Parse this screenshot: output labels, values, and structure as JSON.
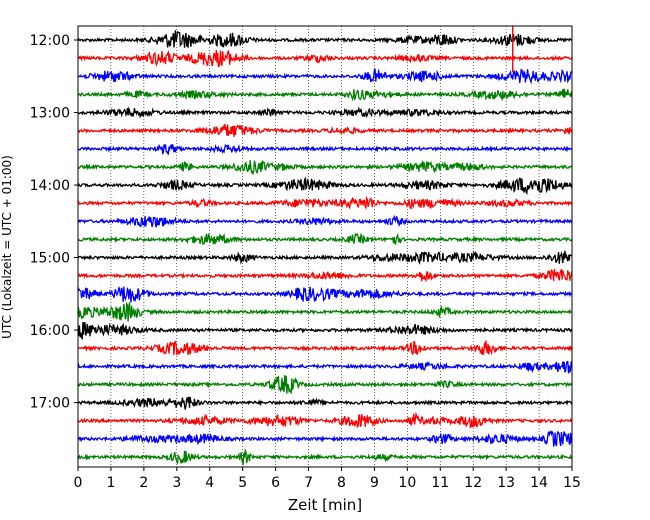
{
  "chart_data": {
    "type": "line",
    "title": "",
    "xlabel": "Zeit  [min]",
    "ylabel": "UTC (Lokalzeit = UTC + 01:00)",
    "xlim": [
      0,
      15
    ],
    "x_ticks": [
      "0",
      "1",
      "2",
      "3",
      "4",
      "5",
      "6",
      "7",
      "8",
      "9",
      "10",
      "11",
      "12",
      "13",
      "14",
      "15"
    ],
    "vertical_grid": "dotted",
    "y_ticks": [
      {
        "label": "12:00",
        "row": 0
      },
      {
        "label": "13:00",
        "row": 4
      },
      {
        "label": "14:00",
        "row": 8
      },
      {
        "label": "15:00",
        "row": 12
      },
      {
        "label": "16:00",
        "row": 16
      },
      {
        "label": "17:00",
        "row": 20
      }
    ],
    "series_colors": [
      "#000000",
      "#ff0000",
      "#0000ff",
      "#008000"
    ],
    "traces": [
      {
        "start": "12:00",
        "color": "#000000"
      },
      {
        "start": "12:15",
        "color": "#ff0000"
      },
      {
        "start": "12:30",
        "color": "#0000ff"
      },
      {
        "start": "12:45",
        "color": "#008000"
      },
      {
        "start": "13:00",
        "color": "#000000"
      },
      {
        "start": "13:15",
        "color": "#ff0000"
      },
      {
        "start": "13:30",
        "color": "#0000ff"
      },
      {
        "start": "13:45",
        "color": "#008000"
      },
      {
        "start": "14:00",
        "color": "#000000"
      },
      {
        "start": "14:15",
        "color": "#ff0000"
      },
      {
        "start": "14:30",
        "color": "#0000ff"
      },
      {
        "start": "14:45",
        "color": "#008000"
      },
      {
        "start": "15:00",
        "color": "#000000"
      },
      {
        "start": "15:15",
        "color": "#ff0000"
      },
      {
        "start": "15:30",
        "color": "#0000ff"
      },
      {
        "start": "15:45",
        "color": "#008000"
      },
      {
        "start": "16:00",
        "color": "#000000"
      },
      {
        "start": "16:15",
        "color": "#ff0000"
      },
      {
        "start": "16:30",
        "color": "#0000ff"
      },
      {
        "start": "16:45",
        "color": "#008000"
      },
      {
        "start": "17:00",
        "color": "#000000"
      },
      {
        "start": "17:15",
        "color": "#ff0000"
      },
      {
        "start": "17:30",
        "color": "#0000ff"
      },
      {
        "start": "17:45",
        "color": "#008000"
      }
    ]
  }
}
